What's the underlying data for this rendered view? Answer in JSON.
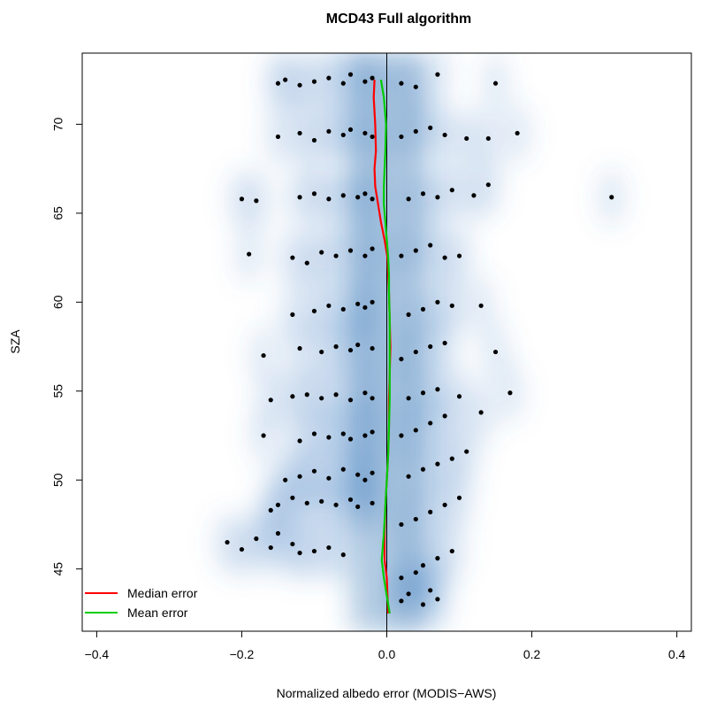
{
  "chart_data": {
    "type": "scatter",
    "title": "MCD43 Full algorithm",
    "xlabel": "Normalized albedo error (MODIS−AWS)",
    "ylabel": "SZA",
    "xlim": [
      -0.42,
      0.42
    ],
    "ylim": [
      41.5,
      74
    ],
    "x_ticks": [
      -0.4,
      -0.2,
      0.0,
      0.2,
      0.4
    ],
    "x_tick_labels": [
      "−0.4",
      "−0.2",
      "0.0",
      "0.2",
      "0.4"
    ],
    "y_ticks": [
      45,
      50,
      55,
      60,
      65,
      70
    ],
    "y_tick_labels": [
      "45",
      "50",
      "55",
      "60",
      "65",
      "70"
    ],
    "grid": false,
    "background": "smoothed density (blue)",
    "zero_reference_line": 0,
    "legend_position": "bottom-left",
    "series": [
      {
        "name": "Median error",
        "color": "#ff0000",
        "x": [
          0.002,
          0.001,
          0.0,
          -0.003,
          -0.003,
          -0.002,
          0.0,
          0.002,
          0.003,
          0.003,
          0.004,
          0.005,
          0.004,
          0.003,
          0.002,
          0.001,
          -0.003,
          -0.008,
          -0.012,
          -0.016,
          -0.017,
          -0.015,
          -0.016,
          -0.018,
          -0.017
        ],
        "y": [
          42.5,
          43.5,
          44.5,
          45.5,
          47,
          48.5,
          50,
          51.5,
          53,
          54.5,
          56,
          57.5,
          59,
          60.5,
          61.5,
          62.5,
          63.5,
          64.5,
          65.5,
          66.5,
          67.5,
          68.5,
          70,
          71.5,
          72.5
        ]
      },
      {
        "name": "Mean error",
        "color": "#00cd00",
        "x": [
          0.004,
          0.0,
          -0.004,
          -0.007,
          -0.004,
          -0.002,
          0.0,
          0.002,
          0.003,
          0.004,
          0.004,
          0.004,
          0.004,
          0.003,
          0.003,
          0.002,
          0.0,
          -0.002,
          -0.004,
          -0.004,
          -0.003,
          -0.002,
          -0.001,
          -0.004,
          -0.008
        ],
        "y": [
          42.5,
          43.5,
          44.5,
          45.5,
          47,
          48.5,
          50,
          51.5,
          53,
          54.5,
          56,
          57.5,
          59,
          60.5,
          61.5,
          62.5,
          63.5,
          64.5,
          65.5,
          66.5,
          67.5,
          68.5,
          70,
          71.5,
          72.5
        ]
      }
    ],
    "points": [
      [
        -0.22,
        46.5
      ],
      [
        -0.18,
        46.7
      ],
      [
        -0.2,
        46.1
      ],
      [
        -0.16,
        46.2
      ],
      [
        -0.15,
        47.0
      ],
      [
        -0.13,
        46.4
      ],
      [
        -0.12,
        45.9
      ],
      [
        -0.1,
        46.0
      ],
      [
        -0.08,
        46.2
      ],
      [
        -0.06,
        45.8
      ],
      [
        -0.15,
        48.6
      ],
      [
        -0.16,
        48.3
      ],
      [
        -0.13,
        49.0
      ],
      [
        -0.11,
        48.7
      ],
      [
        -0.09,
        48.8
      ],
      [
        -0.07,
        48.6
      ],
      [
        -0.05,
        48.9
      ],
      [
        -0.04,
        48.5
      ],
      [
        -0.02,
        48.7
      ],
      [
        -0.14,
        50.0
      ],
      [
        -0.12,
        50.2
      ],
      [
        -0.1,
        50.5
      ],
      [
        -0.08,
        50.1
      ],
      [
        -0.06,
        50.6
      ],
      [
        -0.04,
        50.3
      ],
      [
        -0.03,
        50.0
      ],
      [
        -0.02,
        50.4
      ],
      [
        -0.17,
        52.5
      ],
      [
        -0.12,
        52.2
      ],
      [
        -0.1,
        52.6
      ],
      [
        -0.08,
        52.4
      ],
      [
        -0.06,
        52.6
      ],
      [
        -0.05,
        52.3
      ],
      [
        -0.03,
        52.5
      ],
      [
        -0.02,
        52.7
      ],
      [
        -0.16,
        54.5
      ],
      [
        -0.13,
        54.7
      ],
      [
        -0.11,
        54.8
      ],
      [
        -0.09,
        54.6
      ],
      [
        -0.07,
        54.8
      ],
      [
        -0.05,
        54.5
      ],
      [
        -0.03,
        54.9
      ],
      [
        -0.02,
        54.6
      ],
      [
        -0.17,
        57.0
      ],
      [
        -0.12,
        57.4
      ],
      [
        -0.09,
        57.2
      ],
      [
        -0.07,
        57.5
      ],
      [
        -0.05,
        57.3
      ],
      [
        -0.04,
        57.6
      ],
      [
        -0.02,
        57.4
      ],
      [
        -0.13,
        59.3
      ],
      [
        -0.1,
        59.5
      ],
      [
        -0.08,
        59.8
      ],
      [
        -0.06,
        59.6
      ],
      [
        -0.04,
        59.9
      ],
      [
        -0.03,
        59.7
      ],
      [
        -0.02,
        60.0
      ],
      [
        -0.19,
        62.7
      ],
      [
        -0.13,
        62.5
      ],
      [
        -0.11,
        62.2
      ],
      [
        -0.09,
        62.8
      ],
      [
        -0.07,
        62.6
      ],
      [
        -0.05,
        62.9
      ],
      [
        -0.03,
        62.6
      ],
      [
        -0.02,
        63.0
      ],
      [
        -0.2,
        65.8
      ],
      [
        -0.18,
        65.7
      ],
      [
        -0.12,
        65.9
      ],
      [
        -0.1,
        66.1
      ],
      [
        -0.08,
        65.8
      ],
      [
        -0.06,
        66.0
      ],
      [
        -0.04,
        65.9
      ],
      [
        -0.03,
        66.1
      ],
      [
        -0.02,
        65.8
      ],
      [
        -0.15,
        69.3
      ],
      [
        -0.12,
        69.5
      ],
      [
        -0.1,
        69.1
      ],
      [
        -0.08,
        69.6
      ],
      [
        -0.06,
        69.4
      ],
      [
        -0.05,
        69.7
      ],
      [
        -0.03,
        69.5
      ],
      [
        -0.02,
        69.3
      ],
      [
        -0.12,
        72.2
      ],
      [
        -0.1,
        72.4
      ],
      [
        -0.08,
        72.6
      ],
      [
        -0.06,
        72.3
      ],
      [
        -0.05,
        72.8
      ],
      [
        -0.03,
        72.4
      ],
      [
        -0.02,
        72.6
      ],
      [
        0.02,
        43.2
      ],
      [
        0.03,
        43.6
      ],
      [
        0.05,
        43.0
      ],
      [
        0.06,
        43.8
      ],
      [
        0.07,
        43.3
      ],
      [
        0.02,
        44.5
      ],
      [
        0.04,
        44.8
      ],
      [
        0.05,
        45.2
      ],
      [
        0.07,
        45.6
      ],
      [
        0.09,
        46.0
      ],
      [
        0.02,
        47.5
      ],
      [
        0.04,
        47.8
      ],
      [
        0.06,
        48.2
      ],
      [
        0.08,
        48.6
      ],
      [
        0.1,
        49.0
      ],
      [
        0.03,
        50.2
      ],
      [
        0.05,
        50.6
      ],
      [
        0.07,
        50.9
      ],
      [
        0.09,
        51.2
      ],
      [
        0.11,
        51.6
      ],
      [
        0.02,
        52.5
      ],
      [
        0.04,
        52.8
      ],
      [
        0.06,
        53.2
      ],
      [
        0.08,
        53.6
      ],
      [
        0.13,
        53.8
      ],
      [
        0.03,
        54.6
      ],
      [
        0.05,
        54.9
      ],
      [
        0.07,
        55.1
      ],
      [
        0.1,
        54.7
      ],
      [
        0.17,
        54.9
      ],
      [
        0.02,
        56.8
      ],
      [
        0.04,
        57.2
      ],
      [
        0.06,
        57.5
      ],
      [
        0.08,
        57.7
      ],
      [
        0.15,
        57.2
      ],
      [
        0.03,
        59.3
      ],
      [
        0.05,
        59.6
      ],
      [
        0.07,
        60.0
      ],
      [
        0.09,
        59.8
      ],
      [
        0.13,
        59.8
      ],
      [
        0.02,
        62.6
      ],
      [
        0.04,
        62.9
      ],
      [
        0.06,
        63.2
      ],
      [
        0.08,
        62.5
      ],
      [
        0.1,
        62.6
      ],
      [
        0.03,
        65.8
      ],
      [
        0.05,
        66.1
      ],
      [
        0.07,
        65.9
      ],
      [
        0.09,
        66.3
      ],
      [
        0.12,
        66.0
      ],
      [
        0.14,
        66.6
      ],
      [
        0.31,
        65.9
      ],
      [
        0.02,
        69.3
      ],
      [
        0.04,
        69.6
      ],
      [
        0.06,
        69.8
      ],
      [
        0.08,
        69.4
      ],
      [
        0.11,
        69.2
      ],
      [
        0.14,
        69.2
      ],
      [
        0.18,
        69.5
      ],
      [
        0.02,
        72.3
      ],
      [
        0.04,
        72.1
      ],
      [
        0.07,
        72.8
      ],
      [
        0.15,
        72.3
      ],
      [
        -0.15,
        72.3
      ],
      [
        -0.14,
        72.5
      ]
    ]
  },
  "legend": {
    "median_label": "Median error",
    "mean_label": "Mean error"
  }
}
